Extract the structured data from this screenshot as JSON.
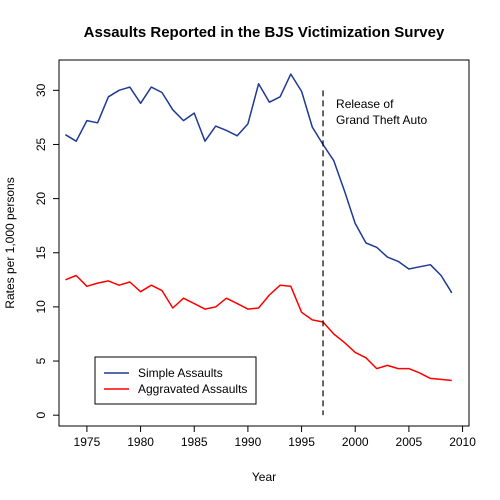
{
  "chart_data": {
    "type": "line",
    "title": "Assaults Reported in the BJS Victimization Survey",
    "xlabel": "Year",
    "ylabel": "Rates per 1,000 persons",
    "xlim": [
      1972.4,
      2010.6
    ],
    "ylim": [
      -1.0,
      32.8
    ],
    "xticks": [
      1975,
      1980,
      1985,
      1990,
      1995,
      2000,
      2005,
      2010
    ],
    "yticks": [
      0,
      5,
      10,
      15,
      20,
      25,
      30
    ],
    "grid": false,
    "legend_position": "bottom-left",
    "series": [
      {
        "name": "Simple Assaults",
        "color": "#1f3a93",
        "x": [
          1973,
          1974,
          1975,
          1976,
          1977,
          1978,
          1979,
          1980,
          1981,
          1982,
          1983,
          1984,
          1985,
          1986,
          1987,
          1988,
          1989,
          1990,
          1991,
          1992,
          1993,
          1994,
          1995,
          1996,
          1997,
          1998,
          1999,
          2000,
          2001,
          2002,
          2003,
          2004,
          2005,
          2006,
          2007,
          2008,
          2009
        ],
        "values": [
          25.9,
          25.3,
          27.2,
          27.0,
          29.4,
          30.0,
          30.3,
          28.8,
          30.3,
          29.8,
          28.2,
          27.2,
          27.9,
          25.3,
          26.7,
          26.3,
          25.8,
          26.9,
          30.6,
          28.9,
          29.4,
          31.5,
          29.9,
          26.6,
          25.0,
          23.5,
          20.7,
          17.7,
          15.9,
          15.5,
          14.6,
          14.2,
          13.5,
          13.7,
          13.9,
          12.9,
          11.3
        ]
      },
      {
        "name": "Aggravated Assaults",
        "color": "#ff0000",
        "x": [
          1973,
          1974,
          1975,
          1976,
          1977,
          1978,
          1979,
          1980,
          1981,
          1982,
          1983,
          1984,
          1985,
          1986,
          1987,
          1988,
          1989,
          1990,
          1991,
          1992,
          1993,
          1994,
          1995,
          1996,
          1997,
          1998,
          1999,
          2000,
          2001,
          2002,
          2003,
          2004,
          2005,
          2006,
          2007,
          2008,
          2009
        ],
        "values": [
          12.5,
          12.9,
          11.9,
          12.2,
          12.4,
          12.0,
          12.3,
          11.4,
          12.0,
          11.5,
          9.9,
          10.8,
          10.3,
          9.8,
          10.0,
          10.8,
          10.3,
          9.8,
          9.9,
          11.1,
          12.0,
          11.9,
          9.5,
          8.8,
          8.6,
          7.5,
          6.7,
          5.8,
          5.3,
          4.3,
          4.6,
          4.3,
          4.3,
          3.9,
          3.4,
          3.3,
          3.2
        ]
      }
    ],
    "annotation": {
      "x": 1997,
      "line1": "Release of",
      "line2": "Grand Theft Auto",
      "line_style": "dashed"
    }
  }
}
